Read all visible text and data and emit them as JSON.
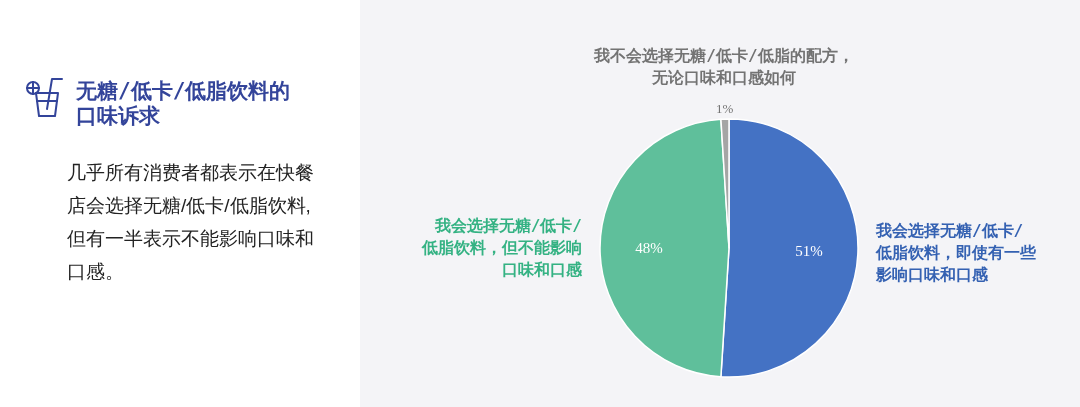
{
  "chart_data": {
    "type": "pie",
    "title": "无糖/低卡/低脂饮料的口味诉求",
    "subtitle": "几乎所有消费者都表示在快餐店会选择无糖/低卡/低脂饮料,但有一半表示不能影响口味和口感。",
    "categories": [
      "我会选择无糖/低卡/低脂饮料，即使有一些影响口味和口感",
      "我会选择无糖/低卡/低脂饮料，但不能影响口味和口感",
      "我不会选择无糖/低卡/低脂的配方，无论口味和口感如何"
    ],
    "values": [
      51,
      48,
      1
    ],
    "colors": [
      "#4472c4",
      "#5fbf9b",
      "#a5a5a5"
    ],
    "value_labels": [
      "51%",
      "48%",
      "1%"
    ]
  }
}
